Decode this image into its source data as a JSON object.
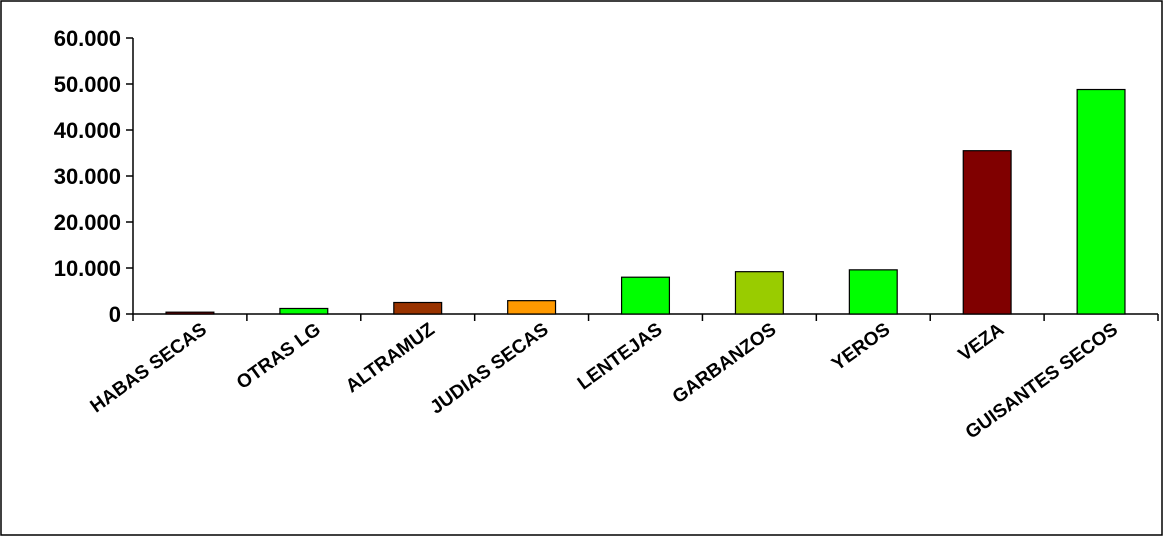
{
  "chart_data": {
    "type": "bar",
    "categories": [
      "HABAS SECAS",
      "OTRAS LG",
      "ALTRAMUZ",
      "JUDIAS SECAS",
      "LENTEJAS",
      "GARBANZOS",
      "YEROS",
      "VEZA",
      "GUISANTES SECOS"
    ],
    "values": [
      400,
      1200,
      2500,
      2900,
      8000,
      9200,
      9600,
      35500,
      48800
    ],
    "colors": [
      "#8B0000",
      "#00FF00",
      "#993300",
      "#FF9900",
      "#00FF00",
      "#99CC00",
      "#00FF00",
      "#800000",
      "#00FF00"
    ],
    "ylim": [
      0,
      60000
    ],
    "yticks": [
      0,
      10000,
      20000,
      30000,
      40000,
      50000,
      60000
    ],
    "ytick_labels": [
      "0",
      "10.000",
      "20.000",
      "30.000",
      "40.000",
      "50.000",
      "60.000"
    ],
    "title": "",
    "xlabel": "",
    "ylabel": "",
    "grid": false,
    "legend": false
  }
}
